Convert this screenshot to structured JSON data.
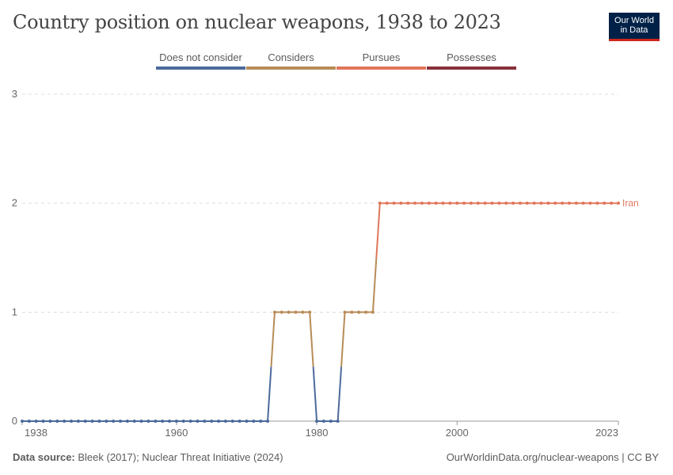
{
  "title": "Country position on nuclear weapons, 1938 to 2023",
  "logo": {
    "line1": "Our World",
    "line2": "in Data",
    "bg": "#002147",
    "accent": "#ce261e"
  },
  "footer": {
    "source_label": "Data source:",
    "source_text": "Bleek (2017); Nuclear Threat Initiative (2024)",
    "right_text": "OurWorldinData.org/nuclear-weapons | CC BY"
  },
  "chart_data": {
    "type": "line",
    "legend_placement": "top",
    "legend": [
      {
        "label": "Does not consider",
        "color": "#4c6a9c"
      },
      {
        "label": "Considers",
        "color": "#b88c57"
      },
      {
        "label": "Pursues",
        "color": "#e0765a"
      },
      {
        "label": "Possesses",
        "color": "#883039"
      }
    ],
    "xlim": [
      1938,
      2023
    ],
    "ylim": [
      0,
      3
    ],
    "x_ticks": [
      1938,
      1960,
      1980,
      2000,
      2023
    ],
    "y_ticks": [
      0,
      1,
      2,
      3
    ],
    "grid": true,
    "series": [
      {
        "name": "Iran",
        "points": [
          [
            1938,
            0
          ],
          [
            1939,
            0
          ],
          [
            1940,
            0
          ],
          [
            1941,
            0
          ],
          [
            1942,
            0
          ],
          [
            1943,
            0
          ],
          [
            1944,
            0
          ],
          [
            1945,
            0
          ],
          [
            1946,
            0
          ],
          [
            1947,
            0
          ],
          [
            1948,
            0
          ],
          [
            1949,
            0
          ],
          [
            1950,
            0
          ],
          [
            1951,
            0
          ],
          [
            1952,
            0
          ],
          [
            1953,
            0
          ],
          [
            1954,
            0
          ],
          [
            1955,
            0
          ],
          [
            1956,
            0
          ],
          [
            1957,
            0
          ],
          [
            1958,
            0
          ],
          [
            1959,
            0
          ],
          [
            1960,
            0
          ],
          [
            1961,
            0
          ],
          [
            1962,
            0
          ],
          [
            1963,
            0
          ],
          [
            1964,
            0
          ],
          [
            1965,
            0
          ],
          [
            1966,
            0
          ],
          [
            1967,
            0
          ],
          [
            1968,
            0
          ],
          [
            1969,
            0
          ],
          [
            1970,
            0
          ],
          [
            1971,
            0
          ],
          [
            1972,
            0
          ],
          [
            1973,
            0
          ],
          [
            1974,
            1
          ],
          [
            1975,
            1
          ],
          [
            1976,
            1
          ],
          [
            1977,
            1
          ],
          [
            1978,
            1
          ],
          [
            1979,
            1
          ],
          [
            1980,
            0
          ],
          [
            1981,
            0
          ],
          [
            1982,
            0
          ],
          [
            1983,
            0
          ],
          [
            1984,
            1
          ],
          [
            1985,
            1
          ],
          [
            1986,
            1
          ],
          [
            1987,
            1
          ],
          [
            1988,
            1
          ],
          [
            1989,
            2
          ],
          [
            1990,
            2
          ],
          [
            1991,
            2
          ],
          [
            1992,
            2
          ],
          [
            1993,
            2
          ],
          [
            1994,
            2
          ],
          [
            1995,
            2
          ],
          [
            1996,
            2
          ],
          [
            1997,
            2
          ],
          [
            1998,
            2
          ],
          [
            1999,
            2
          ],
          [
            2000,
            2
          ],
          [
            2001,
            2
          ],
          [
            2002,
            2
          ],
          [
            2003,
            2
          ],
          [
            2004,
            2
          ],
          [
            2005,
            2
          ],
          [
            2006,
            2
          ],
          [
            2007,
            2
          ],
          [
            2008,
            2
          ],
          [
            2009,
            2
          ],
          [
            2010,
            2
          ],
          [
            2011,
            2
          ],
          [
            2012,
            2
          ],
          [
            2013,
            2
          ],
          [
            2014,
            2
          ],
          [
            2015,
            2
          ],
          [
            2016,
            2
          ],
          [
            2017,
            2
          ],
          [
            2018,
            2
          ],
          [
            2019,
            2
          ],
          [
            2020,
            2
          ],
          [
            2021,
            2
          ],
          [
            2022,
            2
          ],
          [
            2023,
            2
          ]
        ]
      }
    ]
  }
}
